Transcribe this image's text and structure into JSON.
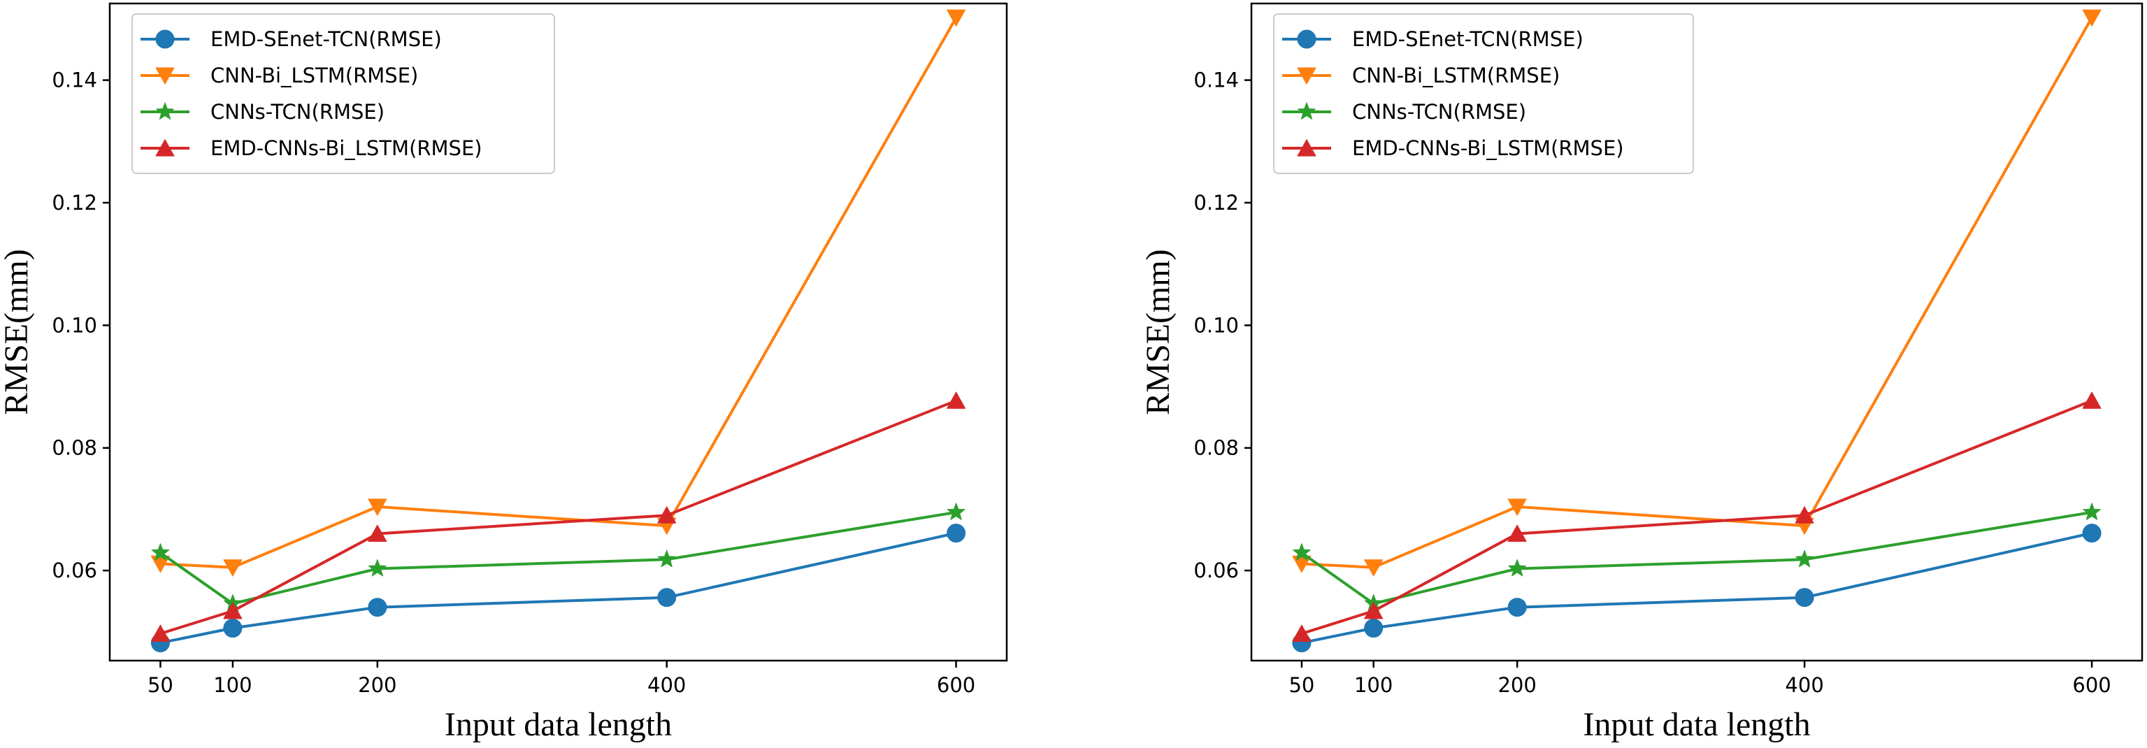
{
  "chart_data": [
    {
      "type": "line",
      "title": "",
      "xlabel": "Input data length",
      "ylabel": "RMSE(mm)",
      "x": [
        50,
        100,
        200,
        400,
        600
      ],
      "xticks": [
        "50",
        "100",
        "200",
        "400",
        "600"
      ],
      "yticks": [
        "0.06",
        "0.08",
        "0.10",
        "0.12",
        "0.14"
      ],
      "xlim": [
        15,
        635
      ],
      "ylim": [
        0.0453,
        0.1525
      ],
      "grid": false,
      "legend_position": "top-left",
      "series": [
        {
          "name": "EMD-SEnet-TCN(RMSE)",
          "color": "#1f77b4",
          "marker": "circle",
          "values": [
            0.0482,
            0.0506,
            0.054,
            0.0556,
            0.0661
          ]
        },
        {
          "name": "CNN-Bi_LSTM(RMSE)",
          "color": "#ff7f0e",
          "marker": "triangle-down",
          "values": [
            0.0611,
            0.0605,
            0.0704,
            0.0673,
            0.1502
          ]
        },
        {
          "name": "CNNs-TCN(RMSE)",
          "color": "#2ca02c",
          "marker": "star",
          "values": [
            0.0629,
            0.0546,
            0.0603,
            0.0618,
            0.0695
          ]
        },
        {
          "name": "EMD-CNNs-Bi_LSTM(RMSE)",
          "color": "#d62728",
          "marker": "triangle-up",
          "values": [
            0.0497,
            0.0534,
            0.066,
            0.069,
            0.0877
          ]
        }
      ]
    },
    {
      "type": "line",
      "title": "",
      "xlabel": "Input data length",
      "ylabel": "RMSE(mm)",
      "x": [
        50,
        100,
        200,
        400,
        600
      ],
      "xticks": [
        "50",
        "100",
        "200",
        "400",
        "600"
      ],
      "yticks": [
        "0.06",
        "0.08",
        "0.10",
        "0.12",
        "0.14"
      ],
      "xlim": [
        15,
        635
      ],
      "ylim": [
        0.0453,
        0.1525
      ],
      "grid": false,
      "legend_position": "top-left",
      "series": [
        {
          "name": "EMD-SEnet-TCN(RMSE)",
          "color": "#1f77b4",
          "marker": "circle",
          "values": [
            0.0482,
            0.0506,
            0.054,
            0.0556,
            0.0661
          ]
        },
        {
          "name": "CNN-Bi_LSTM(RMSE)",
          "color": "#ff7f0e",
          "marker": "triangle-down",
          "values": [
            0.0611,
            0.0605,
            0.0704,
            0.0673,
            0.1502
          ]
        },
        {
          "name": "CNNs-TCN(RMSE)",
          "color": "#2ca02c",
          "marker": "star",
          "values": [
            0.0629,
            0.0546,
            0.0603,
            0.0618,
            0.0695
          ]
        },
        {
          "name": "EMD-CNNs-Bi_LSTM(RMSE)",
          "color": "#d62728",
          "marker": "triangle-up",
          "values": [
            0.0497,
            0.0534,
            0.066,
            0.069,
            0.0877
          ]
        }
      ]
    }
  ]
}
